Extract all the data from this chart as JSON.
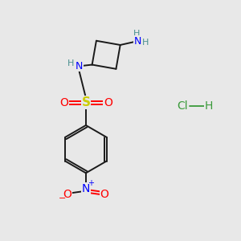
{
  "background_color": "#e8e8e8",
  "bond_color": "#1a1a1a",
  "N_color": "#0000ff",
  "O_color": "#ff0000",
  "S_color": "#cccc00",
  "H_color": "#4a9090",
  "Cl_color": "#3a9a3a",
  "figsize": [
    3.0,
    3.0
  ],
  "dpi": 100,
  "xlim": [
    0,
    10
  ],
  "ylim": [
    0,
    10
  ]
}
